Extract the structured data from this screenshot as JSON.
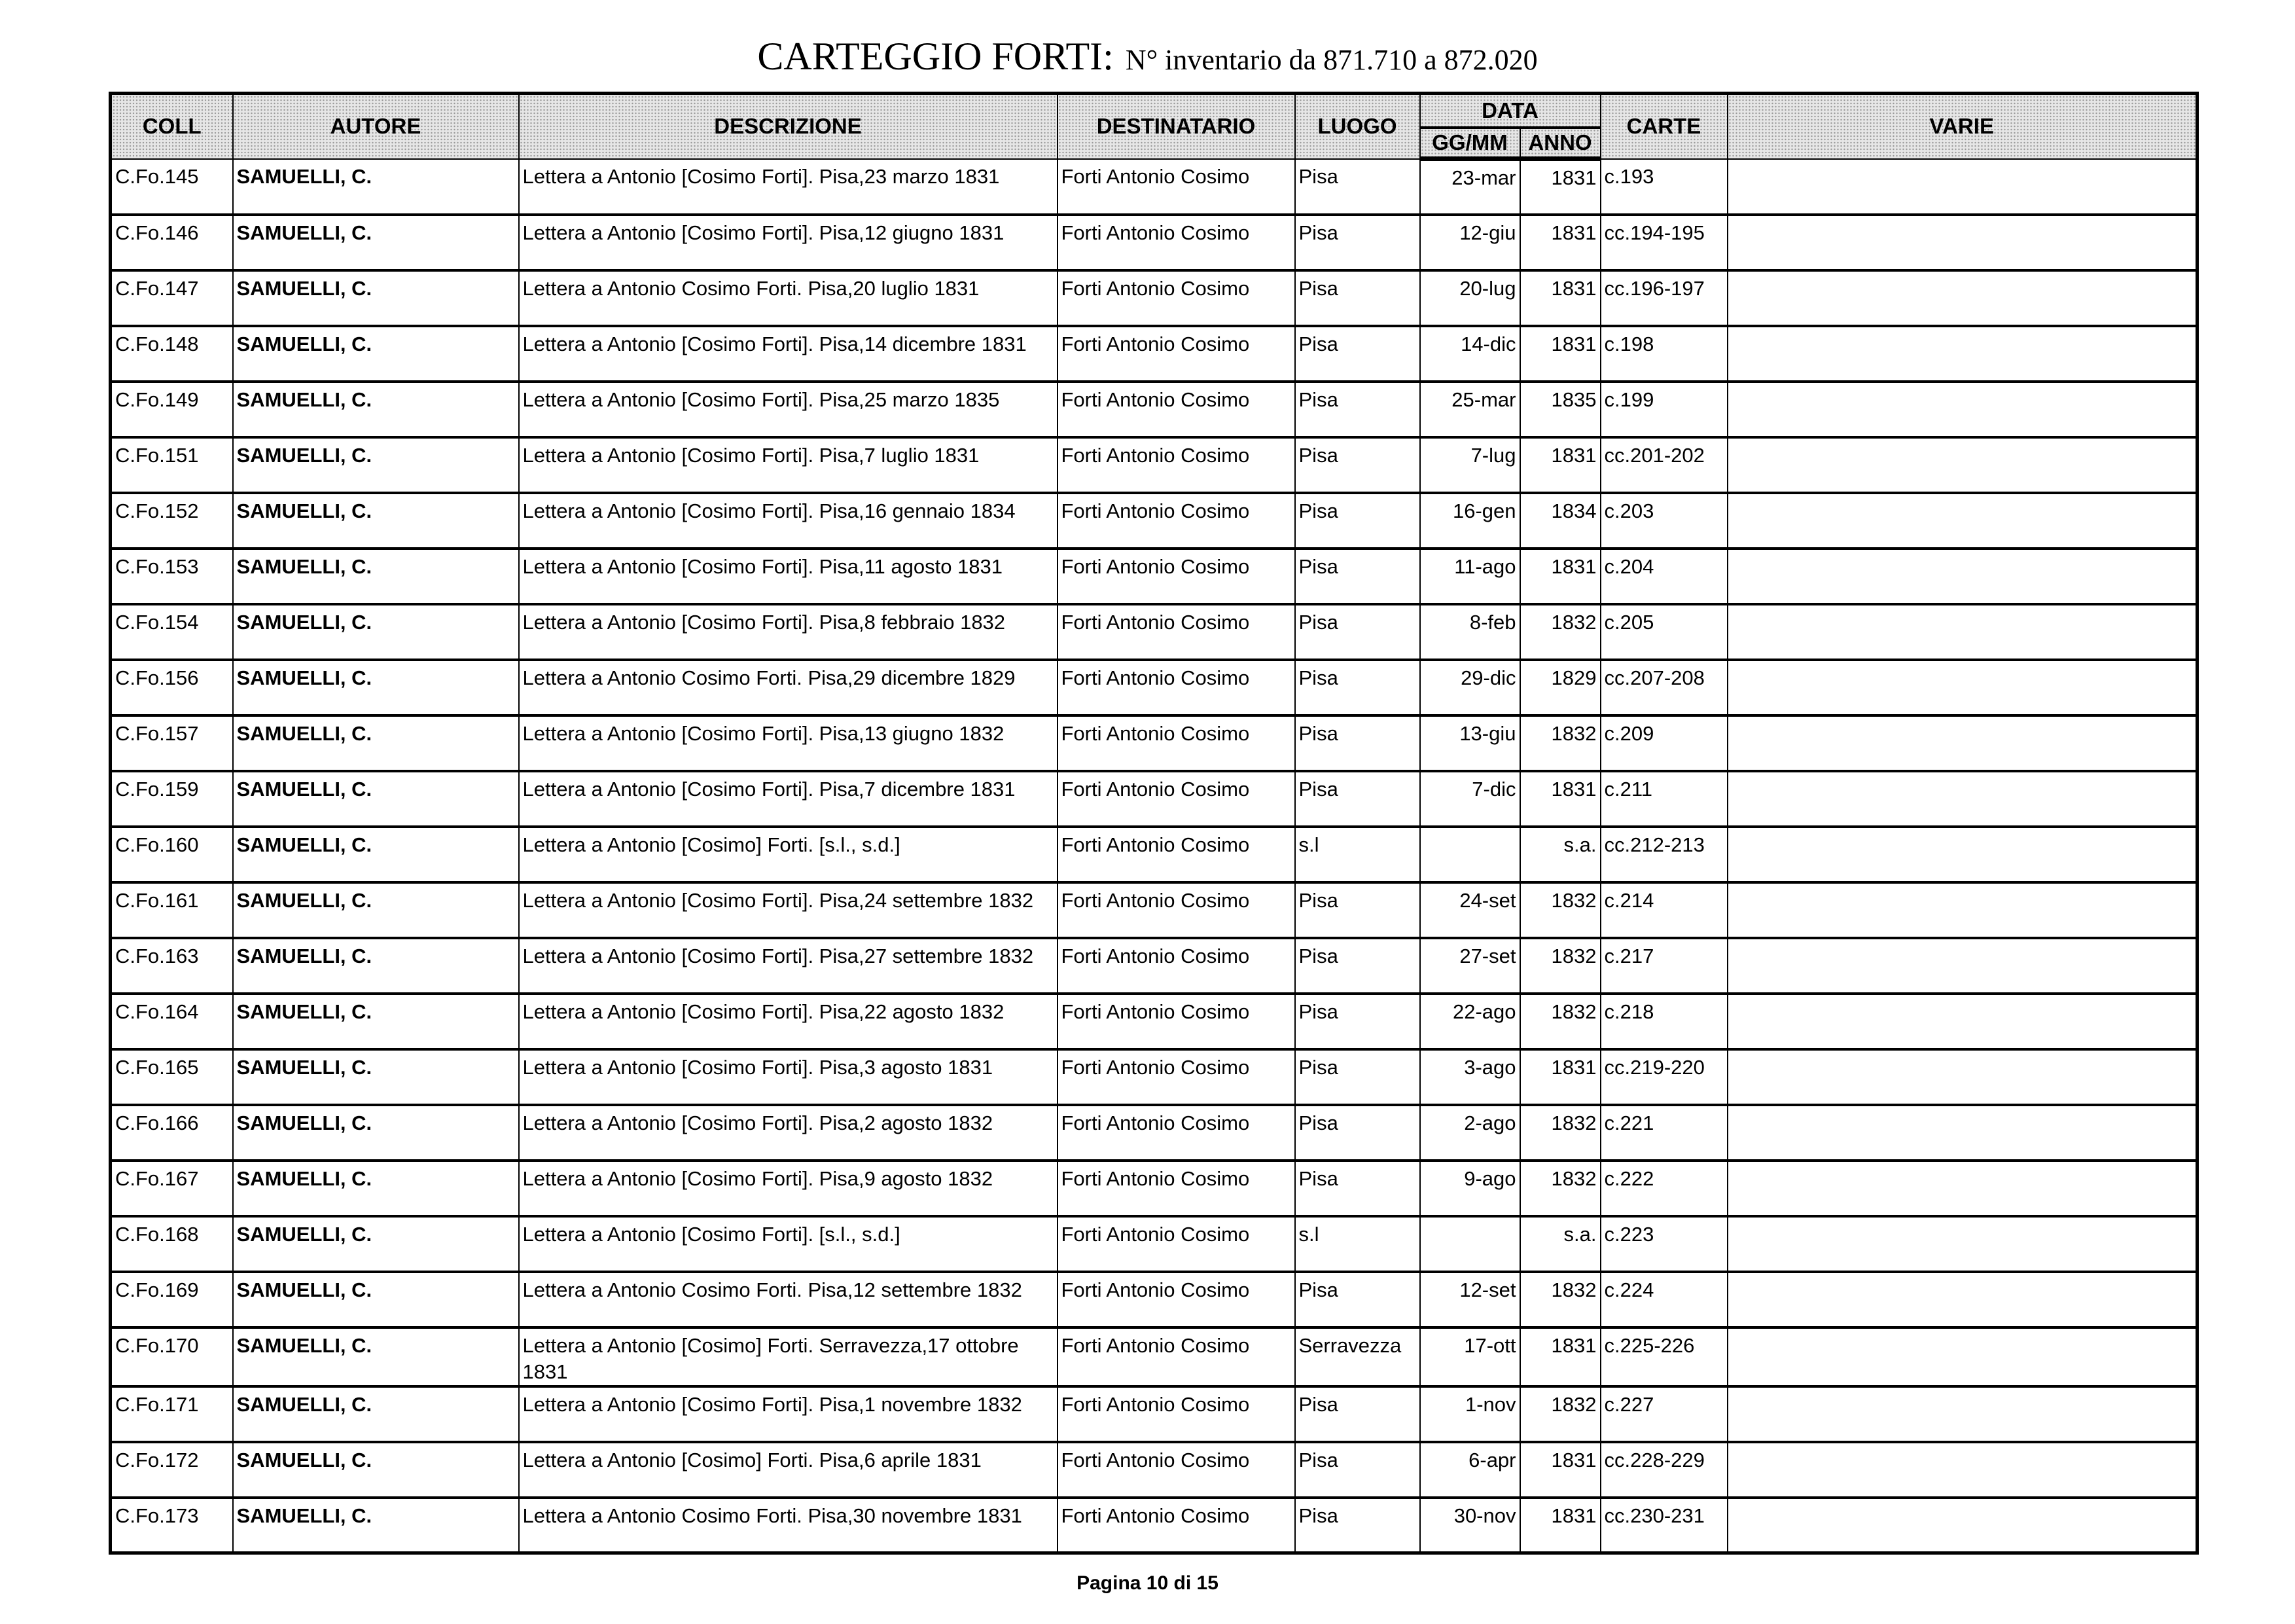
{
  "title": {
    "main": "CARTEGGIO FORTI:",
    "sub": "N° inventario da 871.710 a 872.020"
  },
  "headers": {
    "coll": "COLL",
    "autore": "AUTORE",
    "descrizione": "DESCRIZIONE",
    "destinatario": "DESTINATARIO",
    "luogo": "LUOGO",
    "data": "DATA",
    "ggmm": "GG/MM",
    "anno": "ANNO",
    "carte": "CARTE",
    "varie": "VARIE"
  },
  "rows": [
    [
      "C.Fo.145",
      "SAMUELLI, C.",
      "Lettera a Antonio [Cosimo Forti]. Pisa,23 marzo 1831",
      "Forti Antonio Cosimo",
      "Pisa",
      "23-mar",
      "1831",
      "c.193",
      ""
    ],
    [
      "C.Fo.146",
      "SAMUELLI, C.",
      "Lettera a Antonio [Cosimo Forti]. Pisa,12 giugno 1831",
      "Forti Antonio Cosimo",
      "Pisa",
      "12-giu",
      "1831",
      "cc.194-195",
      ""
    ],
    [
      "C.Fo.147",
      "SAMUELLI, C.",
      "Lettera a Antonio Cosimo Forti. Pisa,20 luglio 1831",
      "Forti Antonio Cosimo",
      "Pisa",
      "20-lug",
      "1831",
      "cc.196-197",
      ""
    ],
    [
      "C.Fo.148",
      "SAMUELLI, C.",
      "Lettera a Antonio [Cosimo Forti]. Pisa,14 dicembre 1831",
      "Forti Antonio Cosimo",
      "Pisa",
      "14-dic",
      "1831",
      "c.198",
      ""
    ],
    [
      "C.Fo.149",
      "SAMUELLI, C.",
      "Lettera a Antonio [Cosimo Forti]. Pisa,25 marzo 1835",
      "Forti Antonio Cosimo",
      "Pisa",
      "25-mar",
      "1835",
      "c.199",
      ""
    ],
    [
      "C.Fo.151",
      "SAMUELLI, C.",
      "Lettera a Antonio [Cosimo Forti]. Pisa,7 luglio 1831",
      "Forti Antonio Cosimo",
      "Pisa",
      "7-lug",
      "1831",
      "cc.201-202",
      ""
    ],
    [
      "C.Fo.152",
      "SAMUELLI, C.",
      "Lettera a Antonio [Cosimo Forti]. Pisa,16 gennaio 1834",
      "Forti Antonio Cosimo",
      "Pisa",
      "16-gen",
      "1834",
      "c.203",
      ""
    ],
    [
      "C.Fo.153",
      "SAMUELLI, C.",
      "Lettera a Antonio [Cosimo Forti]. Pisa,11 agosto 1831",
      "Forti Antonio Cosimo",
      "Pisa",
      "11-ago",
      "1831",
      "c.204",
      ""
    ],
    [
      "C.Fo.154",
      "SAMUELLI, C.",
      "Lettera a Antonio [Cosimo Forti]. Pisa,8 febbraio 1832",
      "Forti Antonio Cosimo",
      "Pisa",
      "8-feb",
      "1832",
      "c.205",
      ""
    ],
    [
      "C.Fo.156",
      "SAMUELLI, C.",
      "Lettera a Antonio Cosimo Forti. Pisa,29 dicembre 1829",
      "Forti Antonio Cosimo",
      "Pisa",
      "29-dic",
      "1829",
      "cc.207-208",
      ""
    ],
    [
      "C.Fo.157",
      "SAMUELLI, C.",
      "Lettera a Antonio [Cosimo Forti]. Pisa,13 giugno 1832",
      "Forti Antonio Cosimo",
      "Pisa",
      "13-giu",
      "1832",
      "c.209",
      ""
    ],
    [
      "C.Fo.159",
      "SAMUELLI, C.",
      "Lettera a Antonio [Cosimo Forti]. Pisa,7 dicembre 1831",
      "Forti Antonio Cosimo",
      "Pisa",
      "7-dic",
      "1831",
      "c.211",
      ""
    ],
    [
      "C.Fo.160",
      "SAMUELLI, C.",
      "Lettera a Antonio [Cosimo] Forti. [s.l., s.d.]",
      "Forti Antonio Cosimo",
      "s.l",
      "",
      "s.a.",
      "cc.212-213",
      ""
    ],
    [
      "C.Fo.161",
      "SAMUELLI, C.",
      "Lettera a Antonio [Cosimo Forti]. Pisa,24 settembre 1832",
      "Forti Antonio Cosimo",
      "Pisa",
      "24-set",
      "1832",
      "c.214",
      ""
    ],
    [
      "C.Fo.163",
      "SAMUELLI, C.",
      "Lettera a Antonio [Cosimo Forti]. Pisa,27 settembre 1832",
      "Forti Antonio Cosimo",
      "Pisa",
      "27-set",
      "1832",
      "c.217",
      ""
    ],
    [
      "C.Fo.164",
      "SAMUELLI, C.",
      "Lettera a Antonio [Cosimo Forti]. Pisa,22 agosto 1832",
      "Forti Antonio Cosimo",
      "Pisa",
      "22-ago",
      "1832",
      "c.218",
      ""
    ],
    [
      "C.Fo.165",
      "SAMUELLI, C.",
      "Lettera a Antonio [Cosimo Forti]. Pisa,3 agosto 1831",
      "Forti Antonio Cosimo",
      "Pisa",
      "3-ago",
      "1831",
      "cc.219-220",
      ""
    ],
    [
      "C.Fo.166",
      "SAMUELLI, C.",
      "Lettera a Antonio [Cosimo Forti]. Pisa,2 agosto 1832",
      "Forti Antonio Cosimo",
      "Pisa",
      "2-ago",
      "1832",
      "c.221",
      ""
    ],
    [
      "C.Fo.167",
      "SAMUELLI, C.",
      "Lettera a Antonio [Cosimo Forti]. Pisa,9 agosto 1832",
      "Forti Antonio Cosimo",
      "Pisa",
      "9-ago",
      "1832",
      "c.222",
      ""
    ],
    [
      "C.Fo.168",
      "SAMUELLI, C.",
      "Lettera a Antonio [Cosimo Forti]. [s.l., s.d.]",
      "Forti Antonio Cosimo",
      "s.l",
      "",
      "s.a.",
      "c.223",
      ""
    ],
    [
      "C.Fo.169",
      "SAMUELLI, C.",
      "Lettera a Antonio Cosimo Forti. Pisa,12 settembre 1832",
      "Forti Antonio Cosimo",
      "Pisa",
      "12-set",
      "1832",
      "c.224",
      ""
    ],
    [
      "C.Fo.170",
      "SAMUELLI, C.",
      "Lettera a Antonio [Cosimo] Forti. Serravezza,17 ottobre 1831",
      "Forti Antonio Cosimo",
      "Serravezza",
      "17-ott",
      "1831",
      "c.225-226",
      ""
    ],
    [
      "C.Fo.171",
      "SAMUELLI, C.",
      "Lettera a Antonio [Cosimo Forti]. Pisa,1 novembre 1832",
      "Forti Antonio Cosimo",
      "Pisa",
      "1-nov",
      "1832",
      "c.227",
      ""
    ],
    [
      "C.Fo.172",
      "SAMUELLI, C.",
      "Lettera a Antonio [Cosimo] Forti. Pisa,6 aprile 1831",
      "Forti Antonio Cosimo",
      "Pisa",
      "6-apr",
      "1831",
      "cc.228-229",
      ""
    ],
    [
      "C.Fo.173",
      "SAMUELLI, C.",
      "Lettera a Antonio Cosimo Forti. Pisa,30 novembre 1831",
      "Forti Antonio Cosimo",
      "Pisa",
      "30-nov",
      "1831",
      "cc.230-231",
      ""
    ]
  ],
  "footer": "Pagina 10 di 15"
}
